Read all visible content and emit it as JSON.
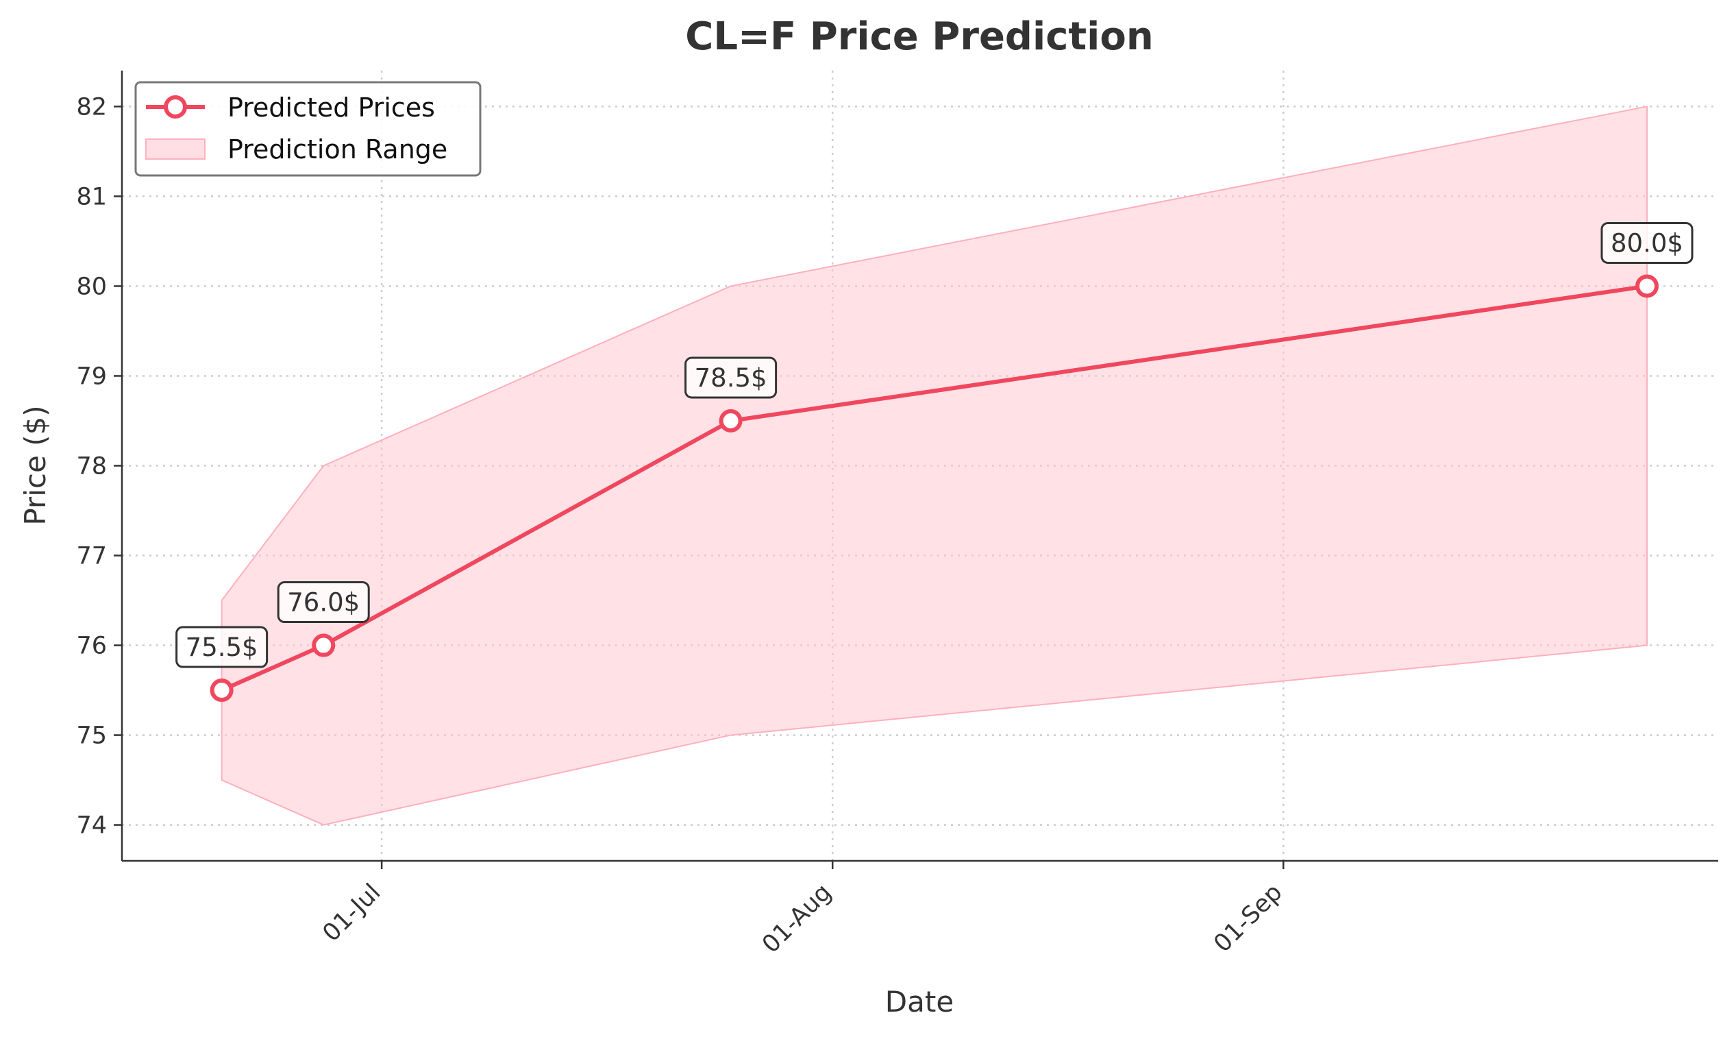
{
  "chart_data": {
    "type": "line",
    "title": "CL=F Price Prediction",
    "xlabel": "Date",
    "ylabel": "Price ($)",
    "x_ticks": [
      "01-Jul",
      "01-Aug",
      "01-Sep"
    ],
    "y_ticks": [
      74,
      75,
      76,
      77,
      78,
      79,
      80,
      81,
      82
    ],
    "ylim": [
      73.6,
      82.4
    ],
    "grid": true,
    "legend_position": "top-left",
    "series": [
      {
        "name": "Predicted Prices",
        "color": "#f0475e",
        "points": [
          {
            "x": "2024-06-20",
            "y": 75.5,
            "label": "75.5$"
          },
          {
            "x": "2024-06-27",
            "y": 76.0,
            "label": "76.0$"
          },
          {
            "x": "2024-07-25",
            "y": 78.5,
            "label": "78.5$"
          },
          {
            "x": "2024-09-26",
            "y": 80.0,
            "label": "80.0$"
          }
        ]
      }
    ],
    "range": {
      "name": "Prediction Range",
      "color": "#ffc4cd",
      "points": [
        {
          "x": "2024-06-20",
          "low": 74.5,
          "high": 76.5
        },
        {
          "x": "2024-06-27",
          "low": 74.0,
          "high": 78.0
        },
        {
          "x": "2024-07-25",
          "low": 75.0,
          "high": 80.0
        },
        {
          "x": "2024-09-26",
          "low": 76.0,
          "high": 82.0
        }
      ]
    }
  }
}
